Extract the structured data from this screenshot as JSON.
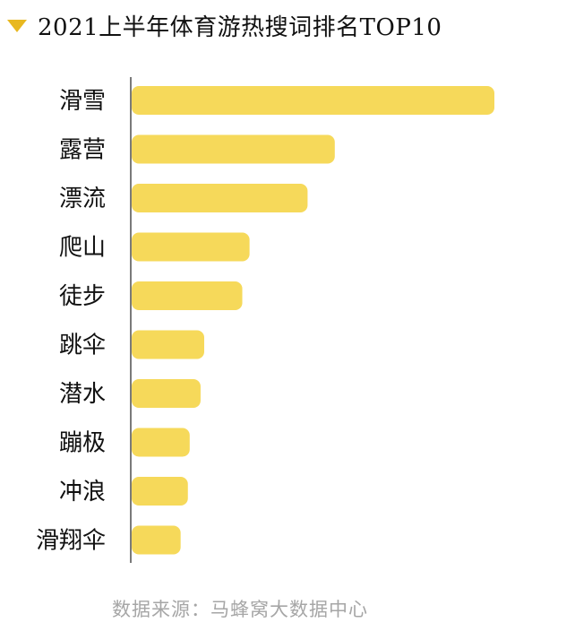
{
  "colors": {
    "bar": "#f6d95a",
    "marker": "#e8b820",
    "axis": "#333333",
    "label": "#111111",
    "source": "#a6a6a6"
  },
  "icons": {
    "title_marker": "triangle-down-icon"
  },
  "chart_data": {
    "type": "bar",
    "orientation": "horizontal",
    "title": "2021上半年体育游热搜词排名TOP10",
    "xlabel": "",
    "ylabel": "",
    "xlim": [
      0,
      100
    ],
    "grid": false,
    "categories": [
      "滑雪",
      "露营",
      "漂流",
      "爬山",
      "徒步",
      "跳伞",
      "潜水",
      "蹦极",
      "冲浪",
      "滑翔伞"
    ],
    "values": [
      100,
      56,
      48.5,
      32.5,
      30.5,
      20,
      19,
      16,
      15.5,
      13.5
    ]
  },
  "source": "数据来源：马蜂窝大数据中心"
}
